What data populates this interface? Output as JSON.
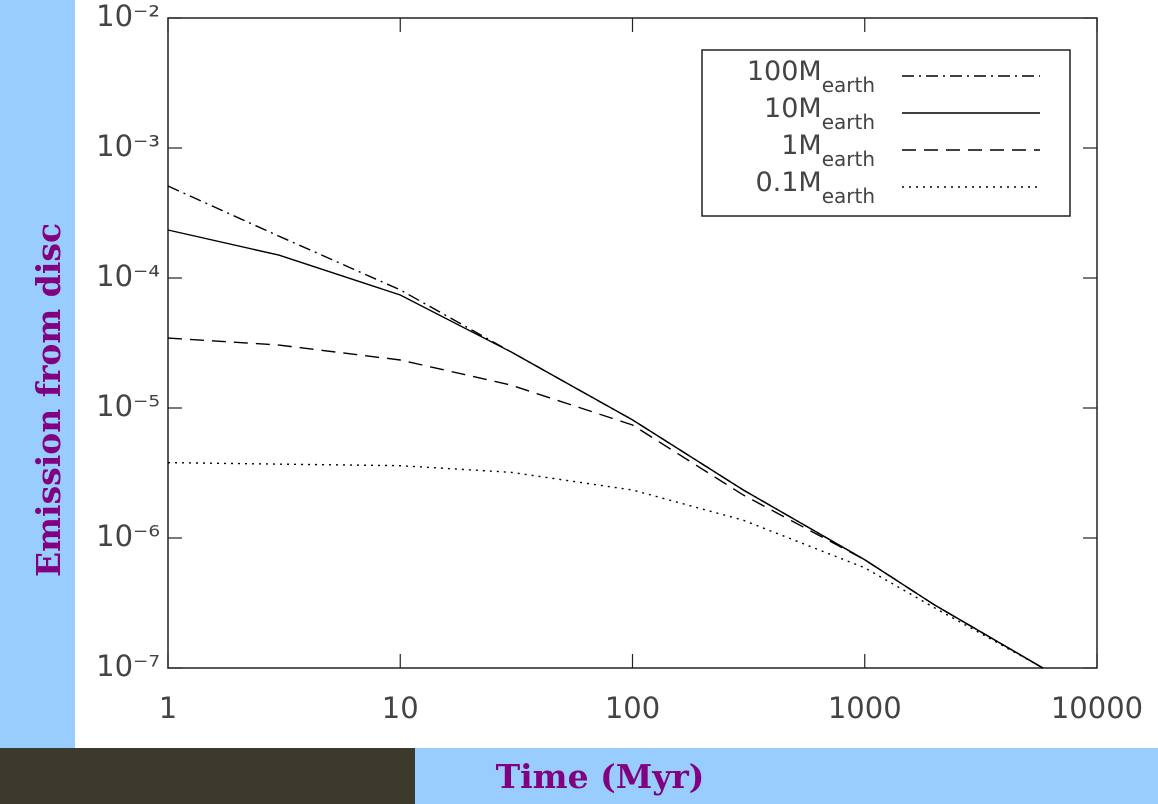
{
  "chart_data": {
    "type": "line",
    "xlabel": "Time (Myr)",
    "ylabel": "Emission from disc",
    "x": [
      1,
      3,
      10,
      30,
      100,
      300,
      1000,
      2000,
      5850
    ],
    "series": [
      {
        "name": "100Mearth",
        "color": "#000000",
        "dash": "dashdot",
        "values": [
          0.00051,
          0.00021,
          8.1e-05,
          2.7e-05,
          8.1e-06,
          2.34e-06,
          6.8e-07,
          3.05e-07,
          1e-07
        ]
      },
      {
        "name": "10Mearth",
        "color": "#000000",
        "dash": "solid",
        "values": [
          0.000234,
          0.00015,
          7.4e-05,
          2.7e-05,
          8.1e-06,
          2.34e-06,
          6.8e-07,
          3.05e-07,
          1e-07
        ]
      },
      {
        "name": "1Mearth",
        "color": "#000000",
        "dash": "dashed",
        "values": [
          3.45e-05,
          3.05e-05,
          2.34e-05,
          1.5e-05,
          7.4e-06,
          2.14e-06,
          6.8e-07,
          3.05e-07,
          1e-07
        ]
      },
      {
        "name": "0.1Mearth",
        "color": "#000000",
        "dash": "dotted",
        "values": [
          3.8e-06,
          3.7e-06,
          3.6e-06,
          3.2e-06,
          2.34e-06,
          1.37e-06,
          5.9e-07,
          2.9e-07,
          1e-07
        ]
      }
    ],
    "xscale": "log",
    "yscale": "log",
    "xlim": [
      1,
      10000
    ],
    "ylim": [
      1e-07,
      0.01
    ],
    "xticks": [
      1,
      10,
      100,
      1000,
      10000
    ],
    "yticks": [
      {
        "value": 1e-07,
        "label": "10⁻⁷"
      },
      {
        "value": 1e-06,
        "label": "10⁻⁶"
      },
      {
        "value": 1e-05,
        "label": "10⁻⁵"
      },
      {
        "value": 0.0001,
        "label": "10⁻⁴"
      },
      {
        "value": 0.001,
        "label": "10⁻³"
      },
      {
        "value": 0.01,
        "label": "10⁻²"
      }
    ],
    "legend": "upper right"
  }
}
